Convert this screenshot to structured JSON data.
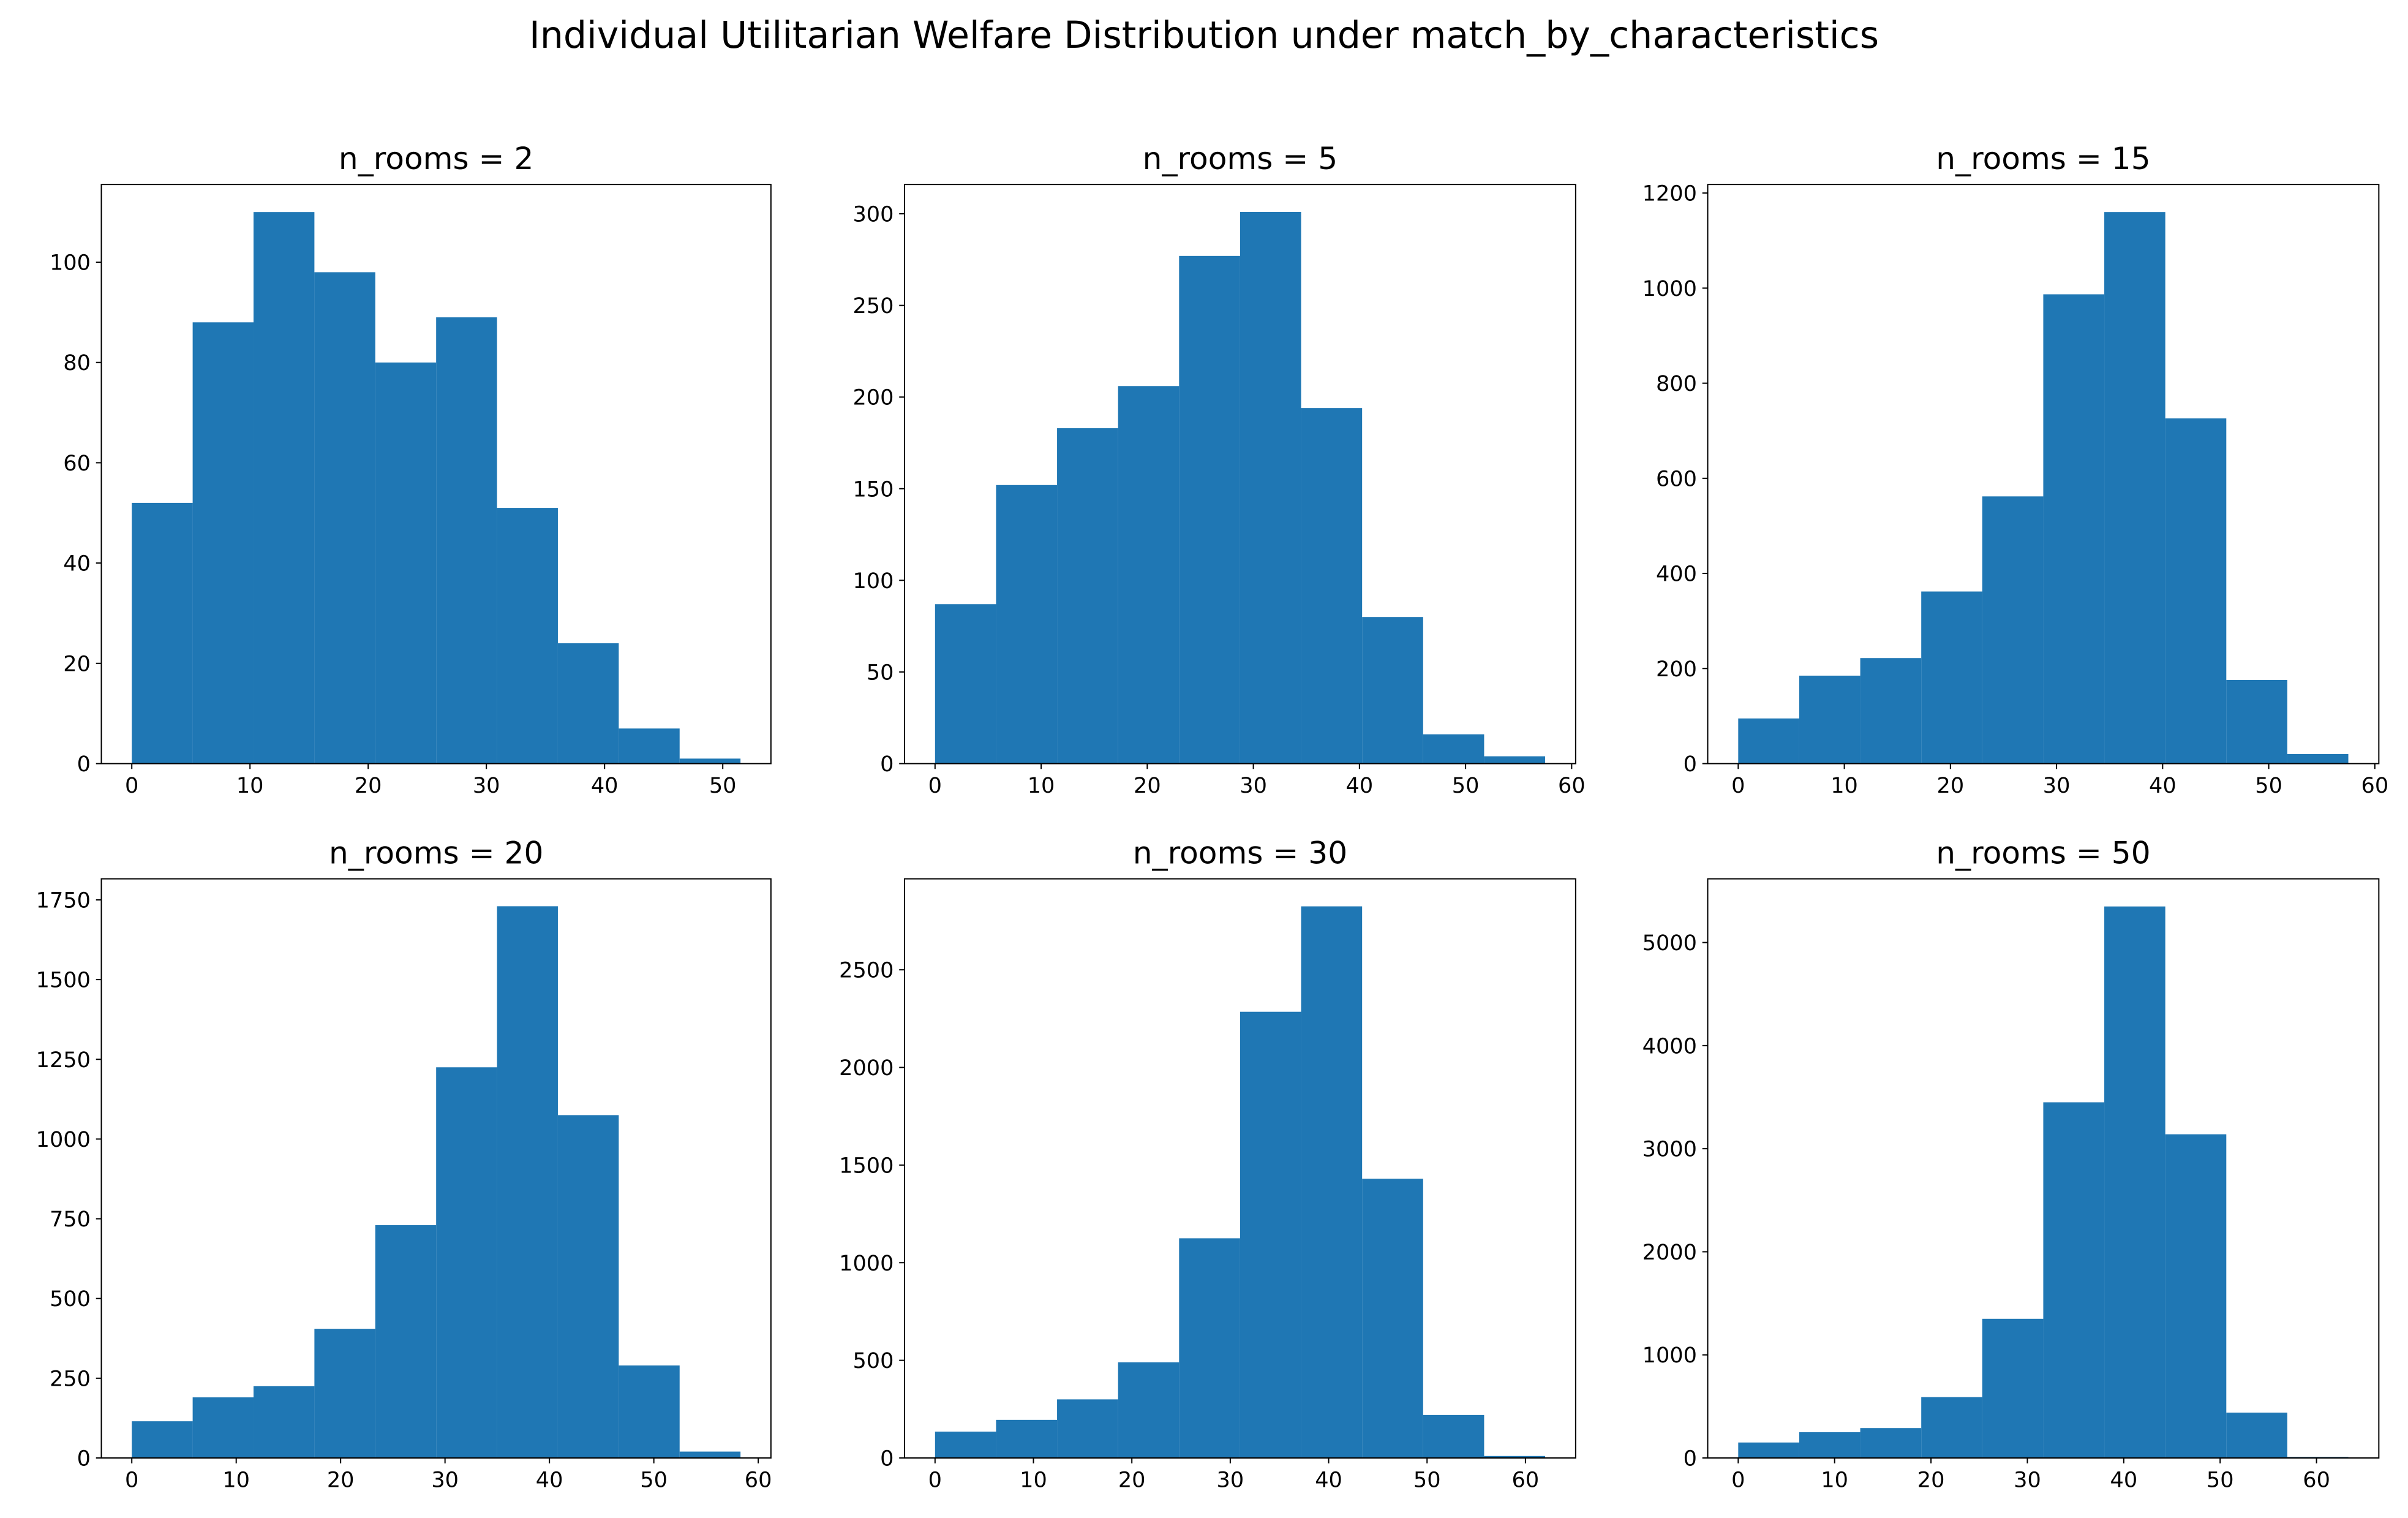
{
  "title": "Individual Utilitarian Welfare Distribution under match_by_characteristics",
  "chart_data": [
    {
      "type": "histogram",
      "title": "n_rooms = 2",
      "color": "#1f77b4",
      "bins": [
        0,
        5.15,
        10.3,
        15.45,
        20.6,
        25.75,
        30.9,
        36.05,
        41.2,
        46.35,
        51.5
      ],
      "values": [
        52,
        88,
        110,
        98,
        80,
        89,
        51,
        24,
        7,
        1
      ],
      "xlim": [
        -2.575,
        54.075
      ],
      "xticks": [
        0,
        10,
        20,
        30,
        40,
        50
      ],
      "ylim": [
        0,
        115.5
      ],
      "yticks": [
        0,
        20,
        40,
        60,
        80,
        100
      ]
    },
    {
      "type": "histogram",
      "title": "n_rooms = 5",
      "color": "#1f77b4",
      "bins": [
        0,
        5.75,
        11.5,
        17.25,
        23,
        28.75,
        34.5,
        40.25,
        46,
        51.75,
        57.5
      ],
      "values": [
        87,
        152,
        183,
        206,
        277,
        301,
        194,
        80,
        16,
        4
      ],
      "xlim": [
        -2.875,
        60.375
      ],
      "xticks": [
        0,
        10,
        20,
        30,
        40,
        50,
        60
      ],
      "ylim": [
        0,
        316
      ],
      "yticks": [
        0,
        50,
        100,
        150,
        200,
        250,
        300
      ]
    },
    {
      "type": "histogram",
      "title": "n_rooms = 15",
      "color": "#1f77b4",
      "bins": [
        0,
        5.75,
        11.5,
        17.25,
        23,
        28.75,
        34.5,
        40.25,
        46,
        51.75,
        57.5
      ],
      "values": [
        95,
        185,
        222,
        362,
        562,
        987,
        1160,
        726,
        176,
        20
      ],
      "xlim": [
        -2.875,
        60.375
      ],
      "xticks": [
        0,
        10,
        20,
        30,
        40,
        50,
        60
      ],
      "ylim": [
        0,
        1218
      ],
      "yticks": [
        0,
        200,
        400,
        600,
        800,
        1000,
        1200
      ]
    },
    {
      "type": "histogram",
      "title": "n_rooms = 20",
      "color": "#1f77b4",
      "bins": [
        0,
        5.83,
        11.66,
        17.49,
        23.32,
        29.15,
        34.98,
        40.81,
        46.64,
        52.47,
        58.3
      ],
      "values": [
        115,
        190,
        225,
        405,
        730,
        1225,
        1730,
        1075,
        290,
        20
      ],
      "xlim": [
        -2.915,
        61.215
      ],
      "xticks": [
        0,
        10,
        20,
        30,
        40,
        50,
        60
      ],
      "ylim": [
        0,
        1816
      ],
      "yticks": [
        0,
        250,
        500,
        750,
        1000,
        1250,
        1500,
        1750
      ]
    },
    {
      "type": "histogram",
      "title": "n_rooms = 30",
      "color": "#1f77b4",
      "bins": [
        0,
        6.2,
        12.4,
        18.6,
        24.8,
        31,
        37.2,
        43.4,
        49.6,
        55.8,
        62
      ],
      "values": [
        135,
        195,
        300,
        490,
        1125,
        2285,
        2825,
        1430,
        220,
        10
      ],
      "xlim": [
        -3.1,
        65.1
      ],
      "xticks": [
        0,
        10,
        20,
        30,
        40,
        50,
        60
      ],
      "ylim": [
        0,
        2966
      ],
      "yticks": [
        0,
        500,
        1000,
        1500,
        2000,
        2500
      ]
    },
    {
      "type": "histogram",
      "title": "n_rooms = 50",
      "color": "#1f77b4",
      "bins": [
        0,
        6.33,
        12.66,
        18.99,
        25.32,
        31.65,
        37.98,
        44.31,
        50.64,
        56.97,
        63.3
      ],
      "values": [
        150,
        250,
        290,
        590,
        1350,
        3450,
        5350,
        3140,
        440,
        10
      ],
      "xlim": [
        -3.165,
        66.465
      ],
      "xticks": [
        0,
        10,
        20,
        30,
        40,
        50,
        60
      ],
      "ylim": [
        0,
        5618
      ],
      "yticks": [
        0,
        1000,
        2000,
        3000,
        4000,
        5000
      ]
    }
  ]
}
